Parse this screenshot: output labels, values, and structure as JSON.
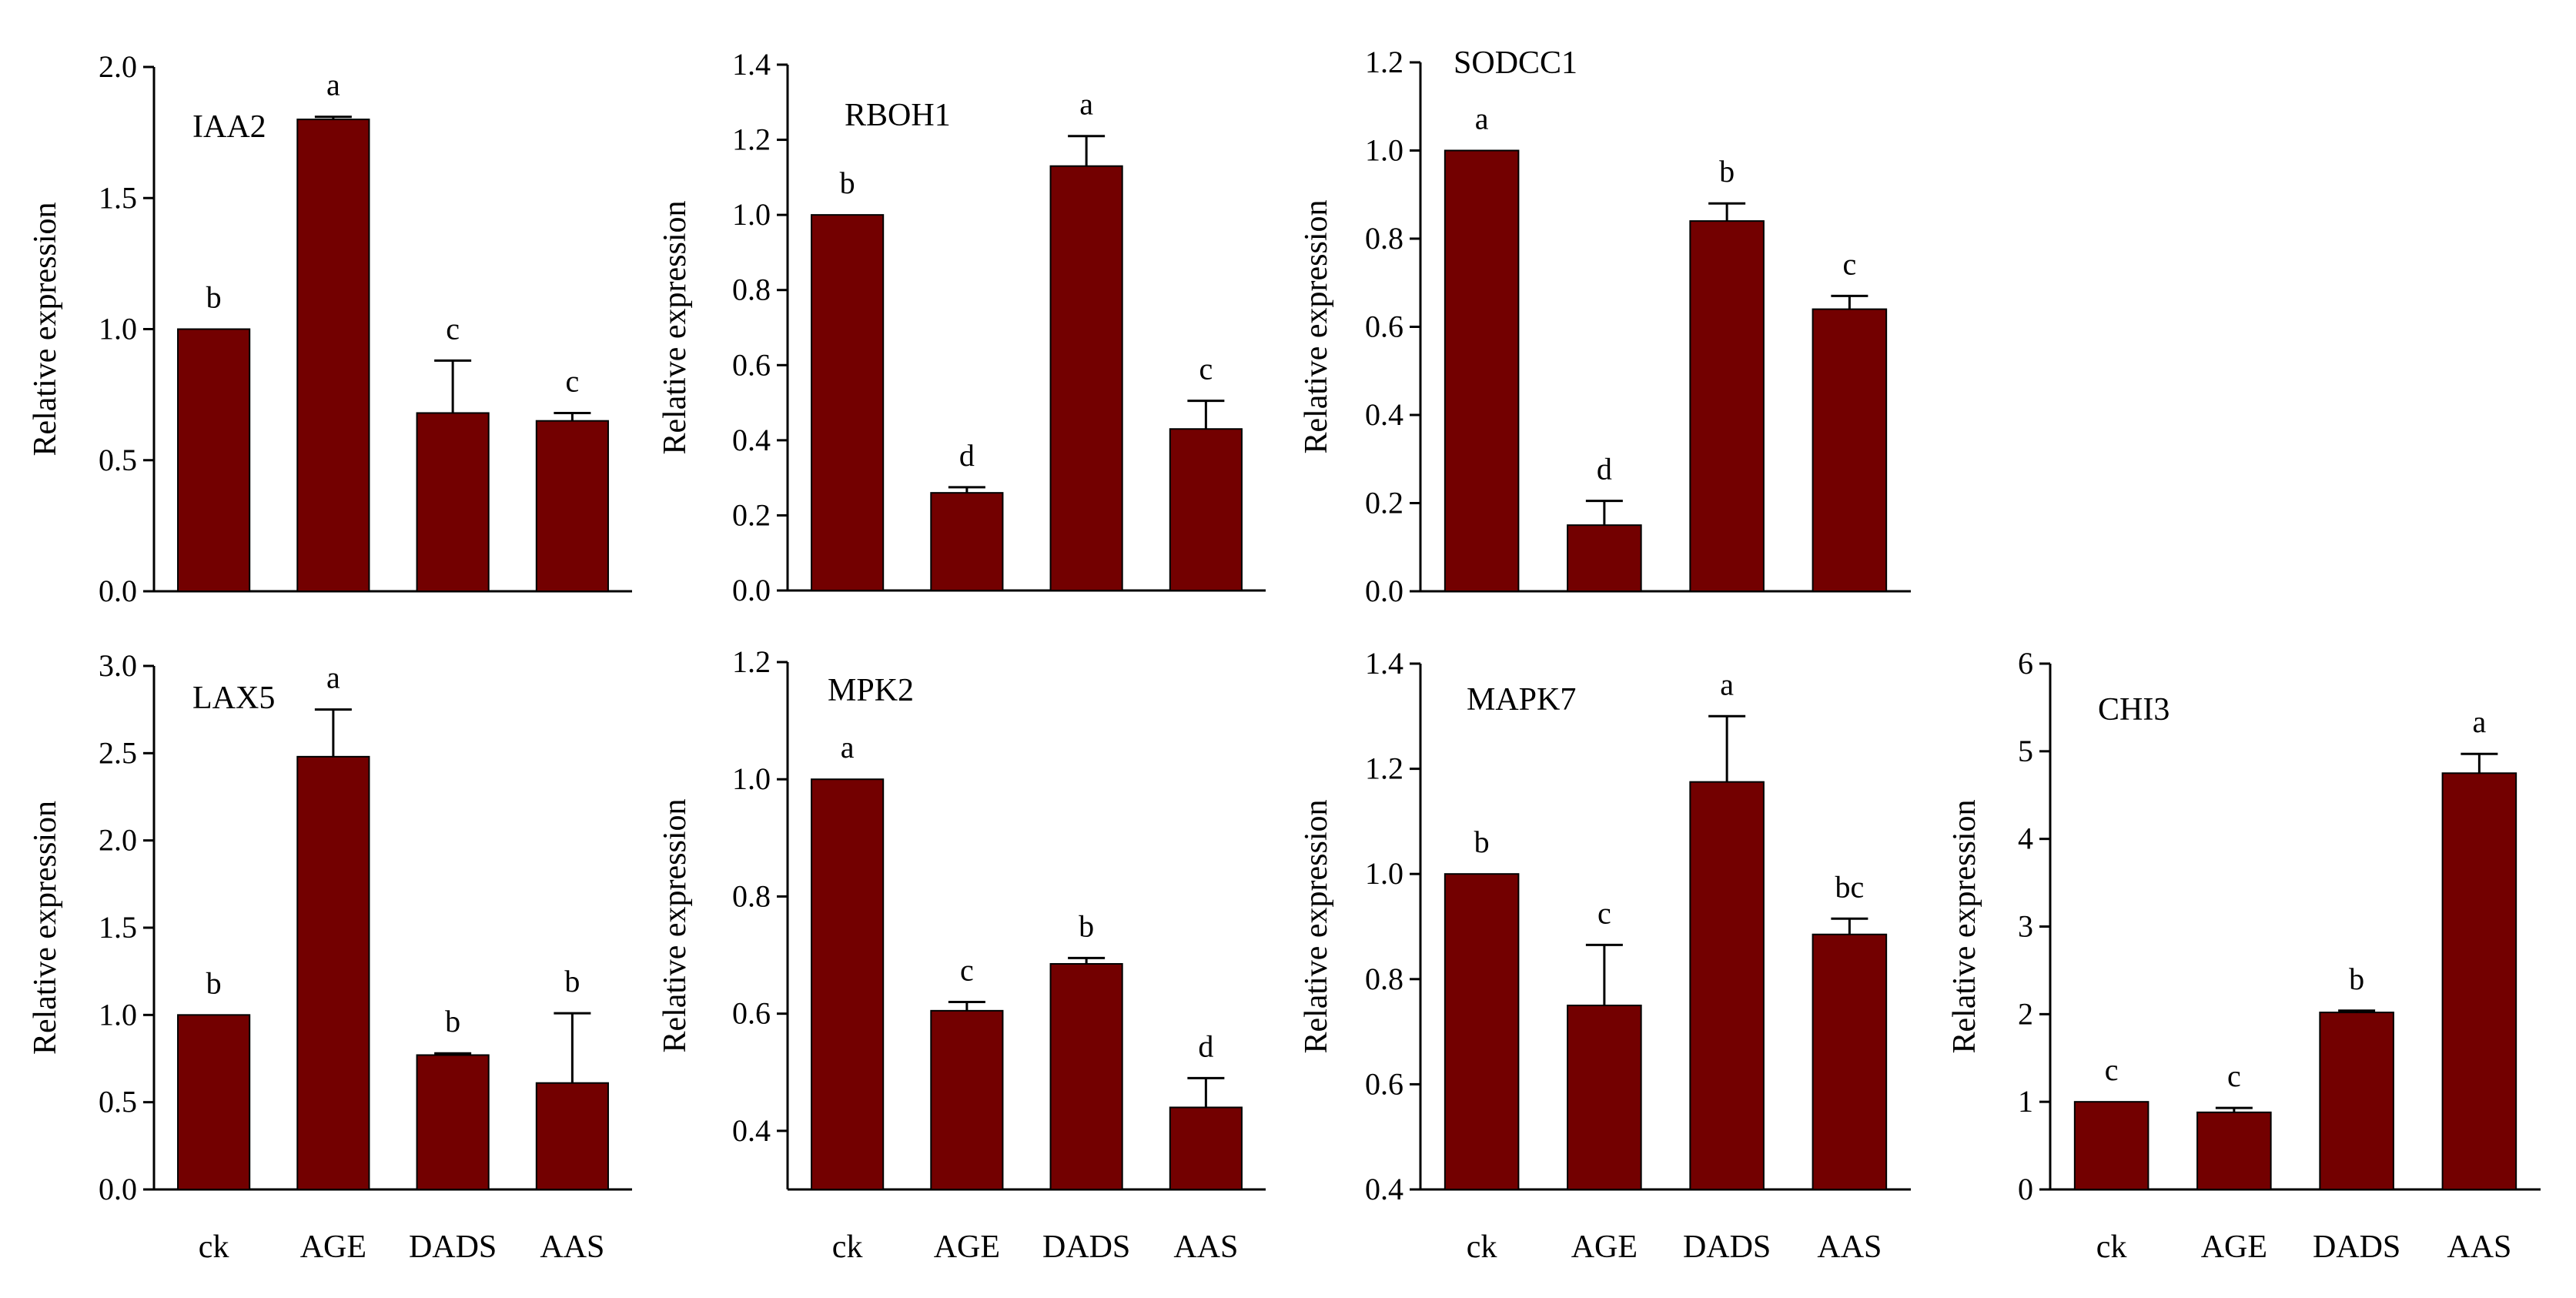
{
  "figure": {
    "bar_color": "#730000",
    "axis_color": "#000000",
    "ylabel": "Relative expression",
    "categories": [
      "ck",
      "AGE",
      "DADS",
      "AAS"
    ]
  },
  "chart_data": [
    {
      "type": "bar",
      "title": "IAA2",
      "xlabel": "",
      "ylabel": "Relative expression",
      "categories": [
        "ck",
        "AGE",
        "DADS",
        "AAS"
      ],
      "values": [
        1.0,
        1.8,
        0.68,
        0.65
      ],
      "errors": [
        0.0,
        0.01,
        0.2,
        0.03
      ],
      "significance": [
        "b",
        "a",
        "c",
        "c"
      ],
      "ylim": [
        0,
        2.0
      ],
      "yticks": [
        "0.0",
        "0.5",
        "1.0",
        "1.5",
        "2.0"
      ],
      "show_x_labels": false
    },
    {
      "type": "bar",
      "title": "RBOH1",
      "xlabel": "",
      "ylabel": "Relative expression",
      "categories": [
        "ck",
        "AGE",
        "DADS",
        "AAS"
      ],
      "values": [
        1.0,
        0.26,
        1.13,
        0.43
      ],
      "errors": [
        0.0,
        0.015,
        0.08,
        0.075
      ],
      "significance": [
        "b",
        "d",
        "a",
        "c"
      ],
      "ylim": [
        0,
        1.4
      ],
      "yticks": [
        "0.0",
        "0.2",
        "0.4",
        "0.6",
        "0.8",
        "1.0",
        "1.2",
        "1.4"
      ],
      "show_x_labels": false
    },
    {
      "type": "bar",
      "title": "SODCC1",
      "xlabel": "",
      "ylabel": "Relative expression",
      "categories": [
        "ck",
        "AGE",
        "DADS",
        "AAS"
      ],
      "values": [
        1.0,
        0.15,
        0.84,
        0.64
      ],
      "errors": [
        0.0,
        0.055,
        0.04,
        0.03
      ],
      "significance": [
        "a",
        "d",
        "b",
        "c"
      ],
      "ylim": [
        0,
        1.2
      ],
      "yticks": [
        "0.0",
        "0.2",
        "0.4",
        "0.6",
        "0.8",
        "1.0",
        "1.2"
      ],
      "show_x_labels": false
    },
    {
      "type": "bar",
      "title": "LAX5",
      "xlabel": "",
      "ylabel": "Relative expression",
      "categories": [
        "ck",
        "AGE",
        "DADS",
        "AAS"
      ],
      "values": [
        1.0,
        2.48,
        0.77,
        0.61
      ],
      "errors": [
        0.0,
        0.27,
        0.01,
        0.4
      ],
      "significance": [
        "b",
        "a",
        "b",
        "b"
      ],
      "ylim": [
        0,
        3.0
      ],
      "yticks": [
        "0.0",
        "0.5",
        "1.0",
        "1.5",
        "2.0",
        "2.5",
        "3.0"
      ],
      "show_x_labels": true
    },
    {
      "type": "bar",
      "title": "MPK2",
      "xlabel": "",
      "ylabel": "Relative expression",
      "categories": [
        "ck",
        "AGE",
        "DADS",
        "AAS"
      ],
      "values": [
        1.0,
        0.605,
        0.685,
        0.44
      ],
      "errors": [
        0.0,
        0.015,
        0.01,
        0.05
      ],
      "significance": [
        "a",
        "c",
        "b",
        "d"
      ],
      "ylim": [
        0.3,
        1.2
      ],
      "yticks": [
        "0.4",
        "0.6",
        "0.8",
        "1.0",
        "1.2"
      ],
      "show_x_labels": true
    },
    {
      "type": "bar",
      "title": "MAPK7",
      "xlabel": "",
      "ylabel": "Relative expression",
      "categories": [
        "ck",
        "AGE",
        "DADS",
        "AAS"
      ],
      "values": [
        1.0,
        0.75,
        1.175,
        0.885
      ],
      "errors": [
        0.0,
        0.115,
        0.125,
        0.03
      ],
      "significance": [
        "b",
        "c",
        "a",
        "bc"
      ],
      "ylim": [
        0.4,
        1.4
      ],
      "yticks": [
        "0.4",
        "0.6",
        "0.8",
        "1.0",
        "1.2",
        "1.4"
      ],
      "show_x_labels": true
    },
    {
      "type": "bar",
      "title": "CHI3",
      "xlabel": "",
      "ylabel": "Relative expression",
      "categories": [
        "ck",
        "AGE",
        "DADS",
        "AAS"
      ],
      "values": [
        1.0,
        0.88,
        2.02,
        4.75
      ],
      "errors": [
        0.0,
        0.05,
        0.02,
        0.22
      ],
      "significance": [
        "c",
        "c",
        "b",
        "a"
      ],
      "ylim": [
        0,
        6
      ],
      "yticks": [
        "0",
        "1",
        "2",
        "3",
        "4",
        "5",
        "6"
      ],
      "show_x_labels": true
    }
  ]
}
